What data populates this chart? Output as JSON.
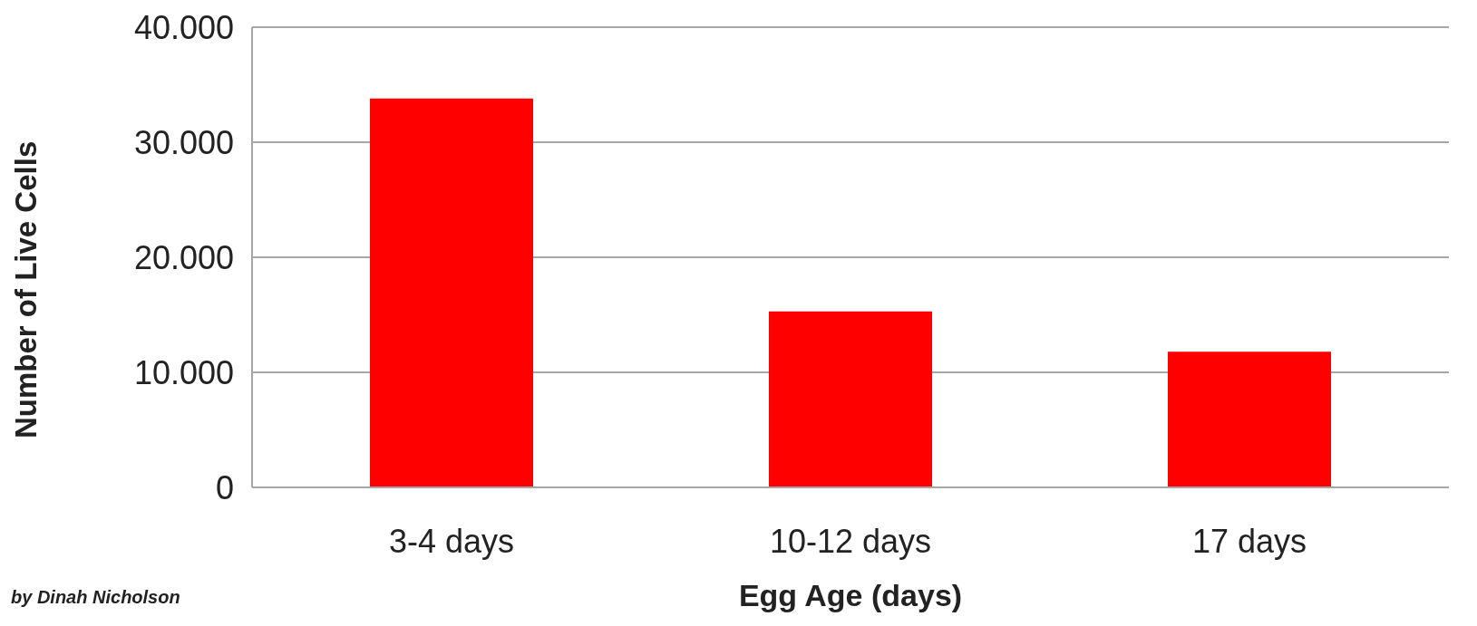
{
  "chart_data": {
    "type": "bar",
    "xlabel": "Egg Age (days)",
    "ylabel": "Number of Live Cells",
    "categories": [
      "3-4 days",
      "10-12 days",
      "17 days"
    ],
    "values": [
      33800,
      15300,
      11800
    ],
    "color": "#ff0000",
    "ylim": [
      0,
      40000
    ],
    "yticks": [
      {
        "value": 0,
        "label": "0"
      },
      {
        "value": 10000,
        "label": "10.000"
      },
      {
        "value": 20000,
        "label": "20.000"
      },
      {
        "value": 30000,
        "label": "30.000"
      },
      {
        "value": 40000,
        "label": "40.000"
      }
    ],
    "grid": "y",
    "annotations": [
      "by Dinah Nicholson"
    ]
  }
}
